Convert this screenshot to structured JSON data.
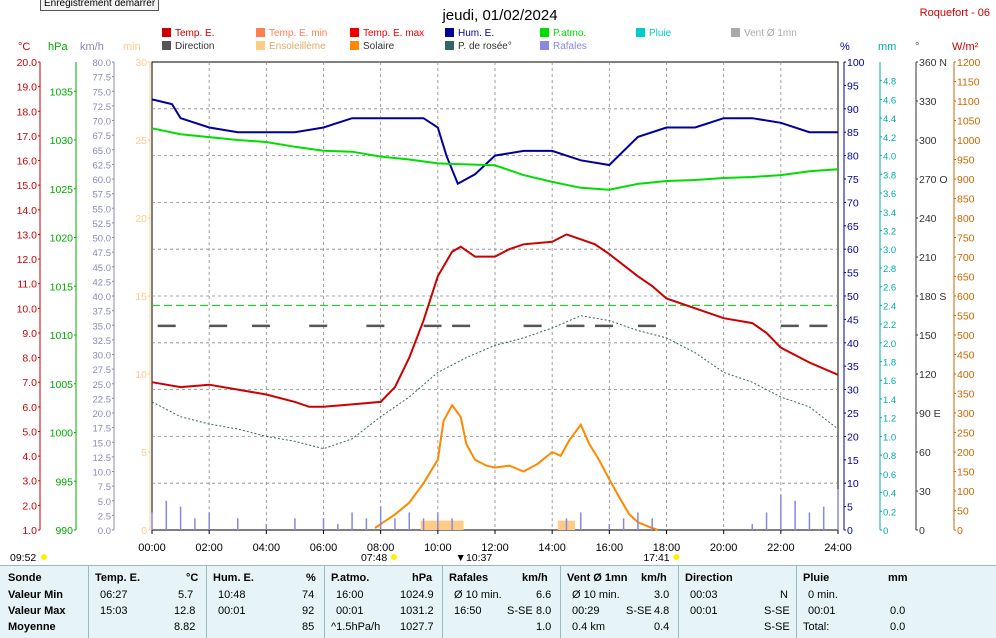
{
  "header": {
    "title": "jeudi, 01/02/2024",
    "station": "Roquefort - 06",
    "badge": "Enregistrement démarrer"
  },
  "axes_units": {
    "temp": "°C",
    "hpa": "hPa",
    "kmh": "km/h",
    "min": "min",
    "pct": "%",
    "mm": "mm",
    "deg": "°",
    "wm2": "W/m²"
  },
  "legend": [
    {
      "label": "Temp. E.",
      "color": "#cc0000"
    },
    {
      "label": "Temp. E. min",
      "color": "#ff7f50"
    },
    {
      "label": "Temp. E. max",
      "color": "#ee0000"
    },
    {
      "label": "Hum. E.",
      "color": "#000099"
    },
    {
      "label": "P.atmo.",
      "color": "#00dd00"
    },
    {
      "label": "Pluie",
      "color": "#00cccc"
    },
    {
      "label": "Vent Ø 1mn",
      "color": "#aaaaaa"
    },
    {
      "label": "Direction",
      "color": "#555555"
    },
    {
      "label": "Ensoleillème",
      "color": "#ffcc88"
    },
    {
      "label": "Solaire",
      "color": "#ff8800"
    },
    {
      "label": "P. de rosée°",
      "color": "#336666"
    },
    {
      "label": "Rafales",
      "color": "#8888dd"
    }
  ],
  "markers": {
    "sunrise": "07:48",
    "sunset": "17:41",
    "start": "09:52",
    "solar_noon": "10:37"
  },
  "chart_data": {
    "type": "line",
    "x_ticks": [
      "00:00",
      "02:00",
      "04:00",
      "06:00",
      "08:00",
      "10:00",
      "12:00",
      "14:00",
      "16:00",
      "18:00",
      "20:00",
      "22:00",
      "24:00"
    ],
    "axes": {
      "temp_c": {
        "range": [
          1.0,
          20.0
        ],
        "ticks": [
          "1.0",
          "2.0",
          "3.0",
          "4.0",
          "5.0",
          "6.0",
          "7.0",
          "8.0",
          "9.0",
          "10.0",
          "11.0",
          "12.0",
          "13.0",
          "14.0",
          "15.0",
          "16.0",
          "17.0",
          "18.0",
          "19.0",
          "20.0"
        ]
      },
      "hpa": {
        "range": [
          990,
          1038
        ],
        "ticks": [
          "990",
          "995",
          "1000",
          "1005",
          "1010",
          "1015",
          "1020",
          "1025",
          "1030",
          "1035"
        ]
      },
      "kmh": {
        "range": [
          0,
          80
        ],
        "ticks": [
          "0.0",
          "2.5",
          "5.0",
          "7.5",
          "10.0",
          "12.5",
          "15.0",
          "17.5",
          "20.0",
          "22.5",
          "25.0",
          "27.5",
          "30.0",
          "32.5",
          "35.0",
          "37.5",
          "40.0",
          "42.5",
          "45.0",
          "47.5",
          "50.0",
          "52.5",
          "55.0",
          "57.5",
          "60.0",
          "62.5",
          "65.0",
          "67.5",
          "70.0",
          "72.5",
          "75.0",
          "77.5",
          "80.0"
        ]
      },
      "min": {
        "range": [
          0,
          30
        ],
        "ticks": [
          "0",
          "5",
          "10",
          "15",
          "20",
          "25",
          "30"
        ]
      },
      "pct": {
        "range": [
          0,
          100
        ],
        "ticks": [
          "0",
          "5",
          "10",
          "15",
          "20",
          "25",
          "30",
          "35",
          "40",
          "45",
          "50",
          "55",
          "60",
          "65",
          "70",
          "75",
          "80",
          "85",
          "90",
          "95",
          "100"
        ]
      },
      "mm": {
        "range": [
          0,
          5.0
        ],
        "ticks": [
          "0",
          "0.2",
          "0.4",
          "0.6",
          "0.8",
          "1.0",
          "1.2",
          "1.4",
          "1.6",
          "1.8",
          "2.0",
          "2.2",
          "2.4",
          "2.6",
          "2.8",
          "3.0",
          "3.2",
          "3.4",
          "3.6",
          "3.8",
          "4.0",
          "4.2",
          "4.4",
          "4.6",
          "4.8"
        ]
      },
      "dir": {
        "range": [
          0,
          360
        ],
        "ticks": [
          "0",
          "30",
          "60",
          "90 E",
          "120",
          "150",
          "180 S",
          "210",
          "240",
          "270 O",
          "300",
          "330",
          "360 N"
        ]
      },
      "wm2": {
        "range": [
          0,
          1200
        ],
        "ticks": [
          "0",
          "50",
          "100",
          "150",
          "200",
          "250",
          "300",
          "350",
          "400",
          "450",
          "500",
          "550",
          "600",
          "650",
          "700",
          "750",
          "800",
          "850",
          "900",
          "950",
          "1000",
          "1050",
          "1100",
          "1150",
          "1200"
        ]
      }
    },
    "series": [
      {
        "name": "Temp. E.",
        "axis": "temp_c",
        "color": "#cc0000",
        "x": [
          0,
          1,
          2,
          3,
          4,
          5,
          5.5,
          6,
          7,
          8,
          8.5,
          9,
          9.5,
          10,
          10.5,
          10.8,
          11.3,
          12,
          12.5,
          13,
          14,
          14.5,
          15,
          15.5,
          16,
          17,
          17.5,
          18,
          19,
          20,
          21,
          21.5,
          22,
          23,
          24
        ],
        "y": [
          7.0,
          6.8,
          6.9,
          6.7,
          6.5,
          6.2,
          6.0,
          6.0,
          6.1,
          6.2,
          6.8,
          8.0,
          9.5,
          11.3,
          12.3,
          12.5,
          12.1,
          12.1,
          12.4,
          12.6,
          12.7,
          13.0,
          12.8,
          12.6,
          12.2,
          11.3,
          10.9,
          10.4,
          10.0,
          9.6,
          9.4,
          9.0,
          8.4,
          7.8,
          7.3
        ]
      },
      {
        "name": "P. de rosée°",
        "axis": "temp_c",
        "color": "#336666",
        "x": [
          0,
          0.5,
          1,
          2,
          3,
          4,
          5,
          6,
          7,
          8,
          9,
          10,
          11,
          12,
          13,
          14,
          15,
          16,
          17,
          18,
          19,
          20,
          21,
          22,
          23,
          24
        ],
        "y": [
          6.2,
          5.9,
          5.6,
          5.3,
          5.1,
          4.8,
          4.6,
          4.3,
          4.7,
          5.6,
          6.4,
          7.4,
          8.0,
          8.5,
          8.8,
          9.2,
          9.7,
          9.5,
          9.1,
          8.8,
          8.2,
          7.4,
          7.0,
          6.4,
          6.0,
          5.1
        ]
      },
      {
        "name": "Hum. E.",
        "axis": "pct",
        "color": "#000099",
        "x": [
          0,
          0.7,
          1,
          2,
          3,
          4,
          5,
          6,
          7,
          8,
          9,
          9.5,
          10,
          10.3,
          10.7,
          11.3,
          12,
          13,
          14,
          15,
          16,
          17,
          18,
          19,
          20,
          21,
          22,
          23,
          24
        ],
        "y": [
          92,
          91,
          88,
          86,
          85,
          85,
          85,
          86,
          88,
          88,
          88,
          88,
          86,
          80,
          74,
          76,
          80,
          81,
          81,
          79,
          78,
          84,
          86,
          86,
          88,
          88,
          87,
          85,
          85
        ]
      },
      {
        "name": "P.atmo.",
        "axis": "hpa",
        "color": "#00dd00",
        "x": [
          0,
          1,
          2,
          3,
          4,
          5,
          6,
          7,
          8,
          9,
          10,
          11,
          12,
          13,
          14,
          15,
          16,
          17,
          18,
          19,
          20,
          21,
          22,
          23,
          24
        ],
        "y": [
          1031.2,
          1030.6,
          1030.3,
          1030.0,
          1029.8,
          1029.3,
          1028.9,
          1028.8,
          1028.3,
          1028.0,
          1027.6,
          1027.5,
          1027.4,
          1026.4,
          1025.7,
          1025.1,
          1024.9,
          1025.5,
          1025.8,
          1025.9,
          1026.1,
          1026.2,
          1026.4,
          1026.8,
          1027.0
        ]
      },
      {
        "name": "Solaire",
        "axis": "wm2",
        "color": "#ff8800",
        "x": [
          7.8,
          8,
          8.5,
          9,
          9.5,
          10,
          10.2,
          10.5,
          10.8,
          11,
          11.3,
          11.7,
          12,
          12.5,
          13,
          13.5,
          14,
          14.3,
          14.6,
          15,
          15.3,
          15.6,
          16,
          16.3,
          16.7,
          17,
          17.4,
          17.7
        ],
        "y": [
          5,
          15,
          40,
          70,
          120,
          180,
          280,
          320,
          290,
          220,
          180,
          165,
          160,
          165,
          150,
          170,
          200,
          190,
          230,
          270,
          220,
          185,
          130,
          90,
          40,
          20,
          8,
          0
        ]
      },
      {
        "name": "Rafales",
        "axis": "kmh",
        "color": "#8888dd",
        "x": [
          0,
          0.5,
          1,
          1.5,
          2,
          3,
          4,
          5,
          6,
          6.5,
          7,
          7.5,
          8,
          8.5,
          9,
          9.5,
          10,
          10.5,
          11,
          14,
          14.5,
          15,
          16,
          16.5,
          17,
          17.5,
          18,
          21,
          21.5,
          22,
          22.5,
          23,
          23.5,
          24
        ],
        "y": [
          3,
          5,
          4,
          2,
          3,
          2,
          1,
          2,
          2,
          1,
          3,
          2,
          4,
          2,
          3,
          2,
          3,
          2,
          0,
          0,
          2,
          3,
          1,
          2,
          3,
          2,
          0,
          1,
          3,
          6,
          5,
          3,
          4,
          7
        ]
      },
      {
        "name": "Direction",
        "axis": "dir",
        "color": "#555555",
        "x": [
          0.2,
          2,
          3.5,
          5.5,
          7.5,
          9.5,
          10.5,
          13,
          14.5,
          15.5,
          17,
          22,
          23
        ],
        "y": [
          157,
          157,
          157,
          157,
          157,
          157,
          157,
          157,
          157,
          157,
          157,
          157,
          157
        ]
      }
    ],
    "sunshine_blocks": [
      {
        "start": 9.4,
        "end": 10.9
      },
      {
        "start": 14.2,
        "end": 14.8
      }
    ],
    "rain_threshold_mm": 2.4
  },
  "summary": {
    "sonde": {
      "title": "Sonde",
      "rows": [
        "Valeur Min",
        "Valeur Max",
        "Moyenne"
      ]
    },
    "temp": {
      "title": "Temp. E.",
      "unit": "°C",
      "min_time": "06:27",
      "min": "5.7",
      "max_time": "15:03",
      "max": "12.8",
      "avg": "8.82"
    },
    "hum": {
      "title": "Hum. E.",
      "unit": "%",
      "min_time": "10:48",
      "min": "74",
      "max_time": "00:01",
      "max": "92",
      "avg": "85"
    },
    "patmo": {
      "title": "P.atmo.",
      "unit": "hPa",
      "min_time": "16:00",
      "min": "1024.9",
      "max_time": "00:01",
      "max": "1031.2",
      "avg_label": "^1.5hPa/h",
      "avg": "1027.7"
    },
    "rafales": {
      "title": "Rafales",
      "unit": "km/h",
      "min_label": "Ø 10 min.",
      "min": "6.6",
      "max_time": "16:50",
      "max_dir": "S-SE",
      "max": "8.0",
      "avg": "1.0"
    },
    "vent": {
      "title": "Vent Ø 1mn",
      "unit": "km/h",
      "min_label": "Ø 10 min.",
      "min": "3.0",
      "max_time": "00:29",
      "max_dir": "S-SE",
      "max": "4.8",
      "avg_label": "0.4 km",
      "avg": "0.4"
    },
    "direction": {
      "title": "Direction",
      "min_time": "00:03",
      "min": "N",
      "max_time": "00:01",
      "max": "S-SE",
      "avg": "S-SE"
    },
    "pluie": {
      "title": "Pluie",
      "unit": "mm",
      "min_label": "0 min.",
      "max_time": "00:01",
      "max": "0.0",
      "avg_label": "Total:",
      "avg": "0.0"
    }
  }
}
